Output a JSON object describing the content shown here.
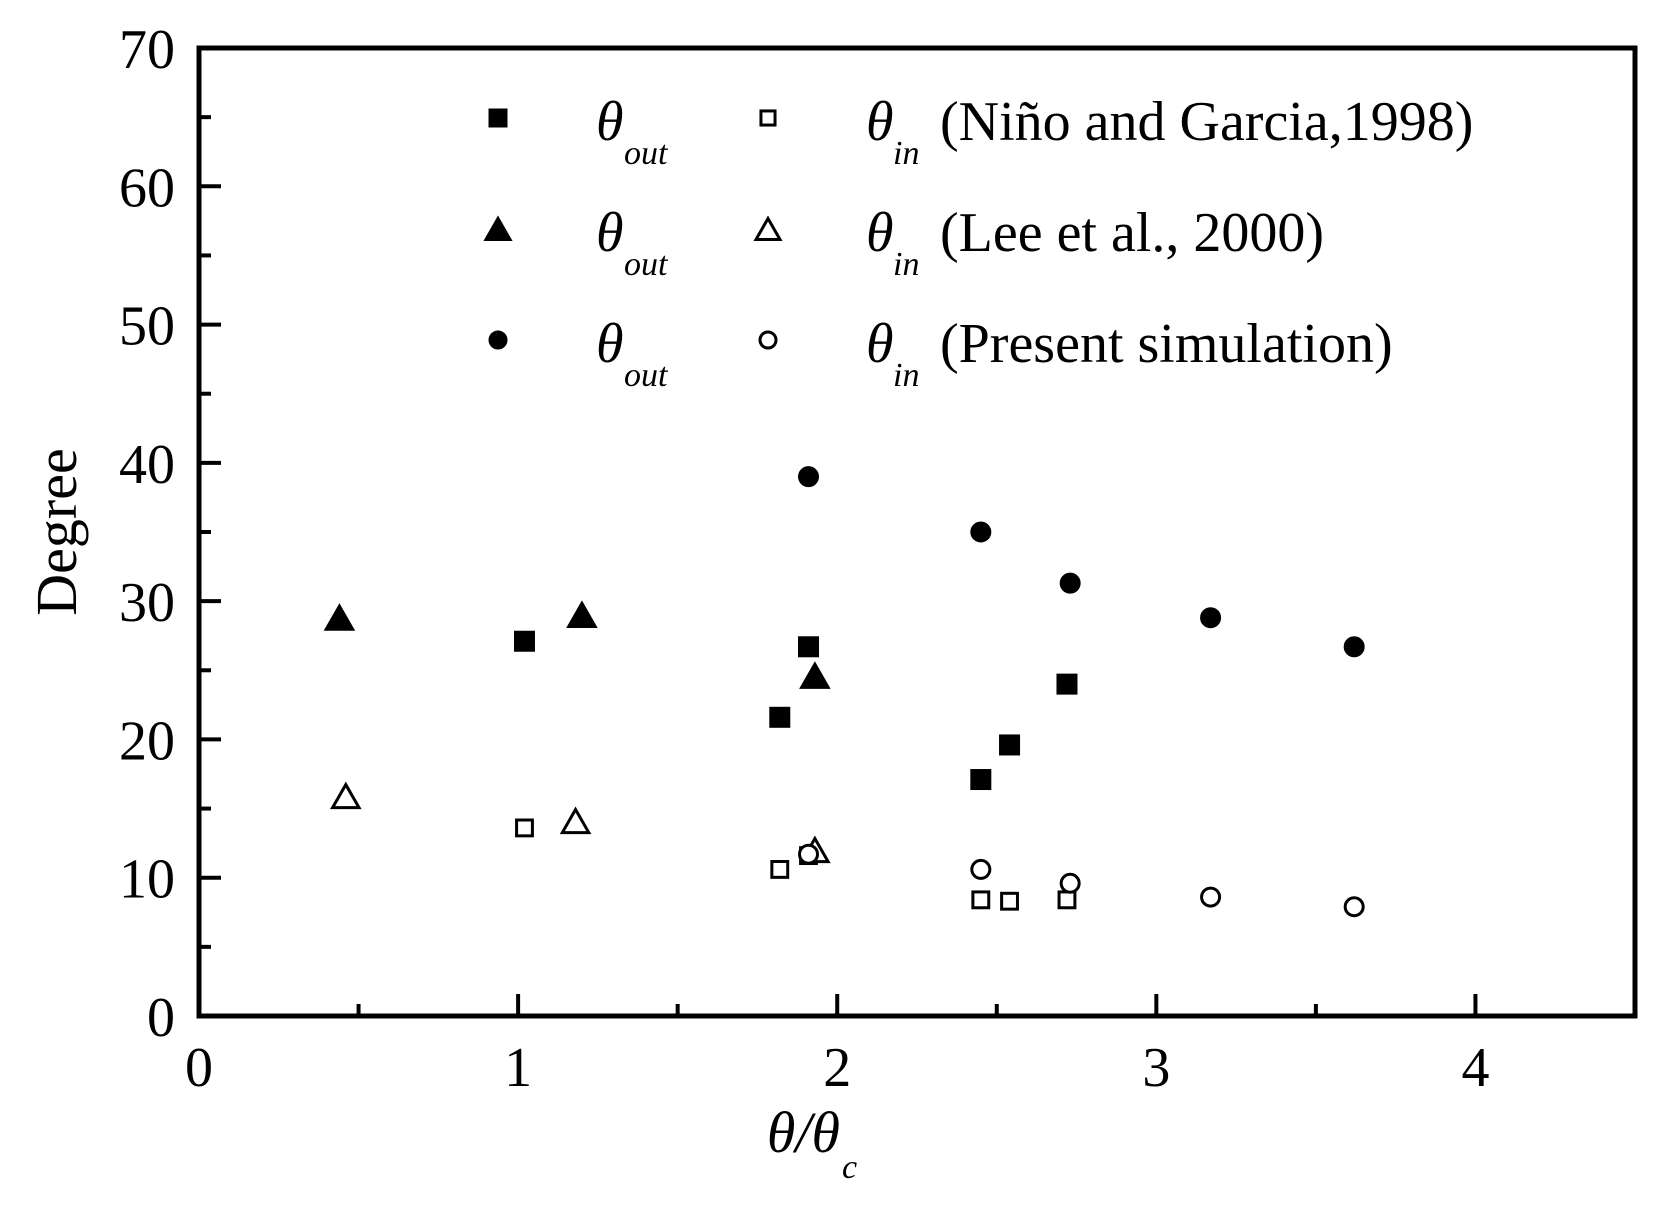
{
  "chart_data": {
    "type": "scatter",
    "title": "",
    "xlabel": {
      "main": "θ/θ",
      "sub": "c"
    },
    "ylabel": "Degree",
    "xlim": [
      0,
      4.5
    ],
    "ylim": [
      0,
      70
    ],
    "x_ticks": [
      "0",
      "1",
      "2",
      "3",
      "4"
    ],
    "y_ticks": [
      "0",
      "10",
      "20",
      "30",
      "40",
      "50",
      "60",
      "70"
    ],
    "grid": false,
    "legend_position": "top-right",
    "legend": [
      {
        "out_label": {
          "main": "θ",
          "sub": "out"
        },
        "in_label": {
          "main": "θ",
          "sub": "in"
        },
        "source": "(Niño and Garcia,1998)"
      },
      {
        "out_label": {
          "main": "θ",
          "sub": "out"
        },
        "in_label": {
          "main": "θ",
          "sub": "in"
        },
        "source": "(Lee et al., 2000)"
      },
      {
        "out_label": {
          "main": "θ",
          "sub": "out"
        },
        "in_label": {
          "main": "θ",
          "sub": "in"
        },
        "source": "(Present simulation)"
      }
    ],
    "series": [
      {
        "key": "nino_out",
        "marker": "square",
        "filled": true,
        "points": [
          [
            1.02,
            27.1
          ],
          [
            1.82,
            21.6
          ],
          [
            1.91,
            26.7
          ],
          [
            2.45,
            17.1
          ],
          [
            2.54,
            19.6
          ],
          [
            2.72,
            24.0
          ]
        ]
      },
      {
        "key": "nino_in",
        "marker": "square",
        "filled": false,
        "points": [
          [
            1.02,
            13.6
          ],
          [
            1.82,
            10.6
          ],
          [
            1.91,
            11.6
          ],
          [
            2.45,
            8.4
          ],
          [
            2.54,
            8.3
          ],
          [
            2.72,
            8.4
          ]
        ]
      },
      {
        "key": "lee_out",
        "marker": "triangle",
        "filled": true,
        "points": [
          [
            0.44,
            28.8
          ],
          [
            1.2,
            29.0
          ],
          [
            1.93,
            24.6
          ]
        ]
      },
      {
        "key": "lee_in",
        "marker": "triangle",
        "filled": false,
        "points": [
          [
            0.46,
            15.9
          ],
          [
            1.18,
            14.1
          ],
          [
            1.93,
            12.0
          ]
        ]
      },
      {
        "key": "present_out",
        "marker": "circle",
        "filled": true,
        "points": [
          [
            1.91,
            39.0
          ],
          [
            2.45,
            35.0
          ],
          [
            2.73,
            31.3
          ],
          [
            3.17,
            28.8
          ],
          [
            3.62,
            26.7
          ]
        ]
      },
      {
        "key": "present_in",
        "marker": "circle",
        "filled": false,
        "points": [
          [
            1.91,
            11.7
          ],
          [
            2.45,
            10.6
          ],
          [
            2.73,
            9.6
          ],
          [
            3.17,
            8.6
          ],
          [
            3.62,
            7.9
          ]
        ]
      }
    ]
  }
}
